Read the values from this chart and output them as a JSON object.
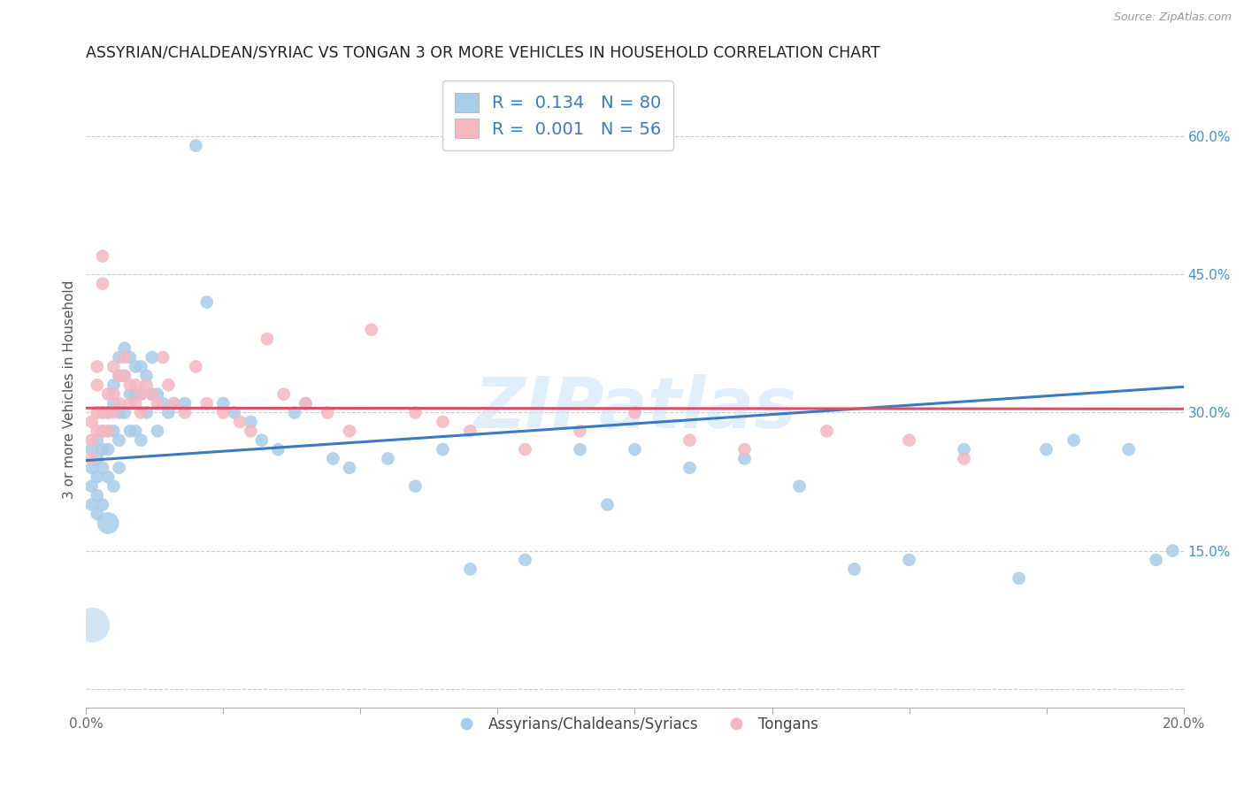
{
  "title": "ASSYRIAN/CHALDEAN/SYRIAC VS TONGAN 3 OR MORE VEHICLES IN HOUSEHOLD CORRELATION CHART",
  "source": "Source: ZipAtlas.com",
  "ylabel": "3 or more Vehicles in Household",
  "xlim": [
    0.0,
    0.2
  ],
  "ylim": [
    -0.02,
    0.67
  ],
  "yticks": [
    0.0,
    0.15,
    0.3,
    0.45,
    0.6
  ],
  "ytick_labels": [
    "",
    "15.0%",
    "30.0%",
    "45.0%",
    "60.0%"
  ],
  "xticks": [
    0.0,
    0.025,
    0.05,
    0.075,
    0.1,
    0.125,
    0.15,
    0.175,
    0.2
  ],
  "xtick_labels": [
    "0.0%",
    "",
    "",
    "",
    "",
    "",
    "",
    "",
    "20.0%"
  ],
  "blue_R": 0.134,
  "blue_N": 80,
  "pink_R": 0.001,
  "pink_N": 56,
  "blue_color": "#a8cde8",
  "pink_color": "#f4b8c1",
  "trend_blue_color": "#3a7abf",
  "trend_pink_color": "#d94f6a",
  "legend_label_blue": "Assyrians/Chaldeans/Syriacs",
  "legend_label_pink": "Tongans",
  "title_fontsize": 12.5,
  "axis_label_fontsize": 11,
  "tick_fontsize": 11,
  "watermark": "ZIPatlas",
  "blue_trend_x": [
    0.0,
    0.2
  ],
  "blue_trend_y": [
    0.248,
    0.328
  ],
  "pink_trend_x": [
    0.0,
    0.2
  ],
  "pink_trend_y": [
    0.305,
    0.304
  ],
  "blue_x": [
    0.001,
    0.001,
    0.001,
    0.001,
    0.002,
    0.002,
    0.002,
    0.002,
    0.002,
    0.003,
    0.003,
    0.003,
    0.003,
    0.004,
    0.004,
    0.004,
    0.004,
    0.004,
    0.005,
    0.005,
    0.005,
    0.005,
    0.006,
    0.006,
    0.006,
    0.006,
    0.006,
    0.007,
    0.007,
    0.007,
    0.008,
    0.008,
    0.008,
    0.009,
    0.009,
    0.009,
    0.01,
    0.01,
    0.01,
    0.011,
    0.011,
    0.012,
    0.012,
    0.013,
    0.013,
    0.014,
    0.015,
    0.016,
    0.018,
    0.02,
    0.022,
    0.025,
    0.027,
    0.03,
    0.032,
    0.035,
    0.038,
    0.04,
    0.045,
    0.048,
    0.055,
    0.06,
    0.065,
    0.07,
    0.08,
    0.09,
    0.095,
    0.1,
    0.11,
    0.12,
    0.13,
    0.14,
    0.15,
    0.16,
    0.17,
    0.175,
    0.18,
    0.19,
    0.195,
    0.198
  ],
  "blue_y": [
    0.26,
    0.24,
    0.22,
    0.2,
    0.27,
    0.25,
    0.23,
    0.21,
    0.19,
    0.28,
    0.26,
    0.24,
    0.2,
    0.3,
    0.28,
    0.26,
    0.23,
    0.18,
    0.33,
    0.31,
    0.28,
    0.22,
    0.36,
    0.34,
    0.3,
    0.27,
    0.24,
    0.37,
    0.34,
    0.3,
    0.36,
    0.32,
    0.28,
    0.35,
    0.32,
    0.28,
    0.35,
    0.32,
    0.27,
    0.34,
    0.3,
    0.36,
    0.32,
    0.32,
    0.28,
    0.31,
    0.3,
    0.31,
    0.31,
    0.59,
    0.42,
    0.31,
    0.3,
    0.29,
    0.27,
    0.26,
    0.3,
    0.31,
    0.25,
    0.24,
    0.25,
    0.22,
    0.26,
    0.13,
    0.14,
    0.26,
    0.2,
    0.26,
    0.24,
    0.25,
    0.22,
    0.13,
    0.14,
    0.26,
    0.12,
    0.26,
    0.27,
    0.26,
    0.14,
    0.15
  ],
  "blue_size": [
    100,
    100,
    100,
    100,
    100,
    100,
    100,
    100,
    100,
    100,
    100,
    100,
    100,
    100,
    100,
    100,
    100,
    300,
    100,
    100,
    100,
    100,
    100,
    100,
    100,
    100,
    100,
    100,
    100,
    100,
    100,
    100,
    100,
    100,
    100,
    100,
    100,
    100,
    100,
    100,
    100,
    100,
    100,
    100,
    100,
    100,
    100,
    100,
    100,
    100,
    100,
    100,
    100,
    100,
    100,
    100,
    100,
    100,
    100,
    100,
    100,
    100,
    100,
    100,
    100,
    100,
    100,
    100,
    100,
    100,
    100,
    100,
    100,
    100,
    100,
    100,
    100,
    100,
    100,
    100
  ],
  "pink_x": [
    0.001,
    0.001,
    0.001,
    0.002,
    0.002,
    0.002,
    0.002,
    0.003,
    0.003,
    0.003,
    0.003,
    0.004,
    0.004,
    0.004,
    0.005,
    0.005,
    0.005,
    0.006,
    0.006,
    0.007,
    0.007,
    0.008,
    0.008,
    0.009,
    0.009,
    0.01,
    0.01,
    0.011,
    0.012,
    0.013,
    0.014,
    0.015,
    0.016,
    0.018,
    0.02,
    0.022,
    0.025,
    0.028,
    0.03,
    0.033,
    0.036,
    0.04,
    0.044,
    0.048,
    0.052,
    0.06,
    0.065,
    0.07,
    0.08,
    0.09,
    0.1,
    0.11,
    0.12,
    0.135,
    0.15,
    0.16
  ],
  "pink_y": [
    0.29,
    0.27,
    0.25,
    0.35,
    0.33,
    0.3,
    0.28,
    0.47,
    0.44,
    0.3,
    0.28,
    0.32,
    0.3,
    0.28,
    0.35,
    0.32,
    0.3,
    0.34,
    0.31,
    0.36,
    0.34,
    0.33,
    0.31,
    0.33,
    0.31,
    0.32,
    0.3,
    0.33,
    0.32,
    0.31,
    0.36,
    0.33,
    0.31,
    0.3,
    0.35,
    0.31,
    0.3,
    0.29,
    0.28,
    0.38,
    0.32,
    0.31,
    0.3,
    0.28,
    0.39,
    0.3,
    0.29,
    0.28,
    0.26,
    0.28,
    0.3,
    0.27,
    0.26,
    0.28,
    0.27,
    0.25
  ],
  "pink_size": [
    100,
    100,
    100,
    100,
    100,
    100,
    100,
    100,
    100,
    100,
    100,
    100,
    100,
    100,
    100,
    100,
    100,
    100,
    100,
    100,
    100,
    100,
    100,
    100,
    100,
    100,
    100,
    100,
    100,
    100,
    100,
    100,
    100,
    100,
    100,
    100,
    100,
    100,
    100,
    100,
    100,
    100,
    100,
    100,
    100,
    100,
    100,
    100,
    100,
    100,
    100,
    100,
    100,
    100,
    100,
    100
  ]
}
